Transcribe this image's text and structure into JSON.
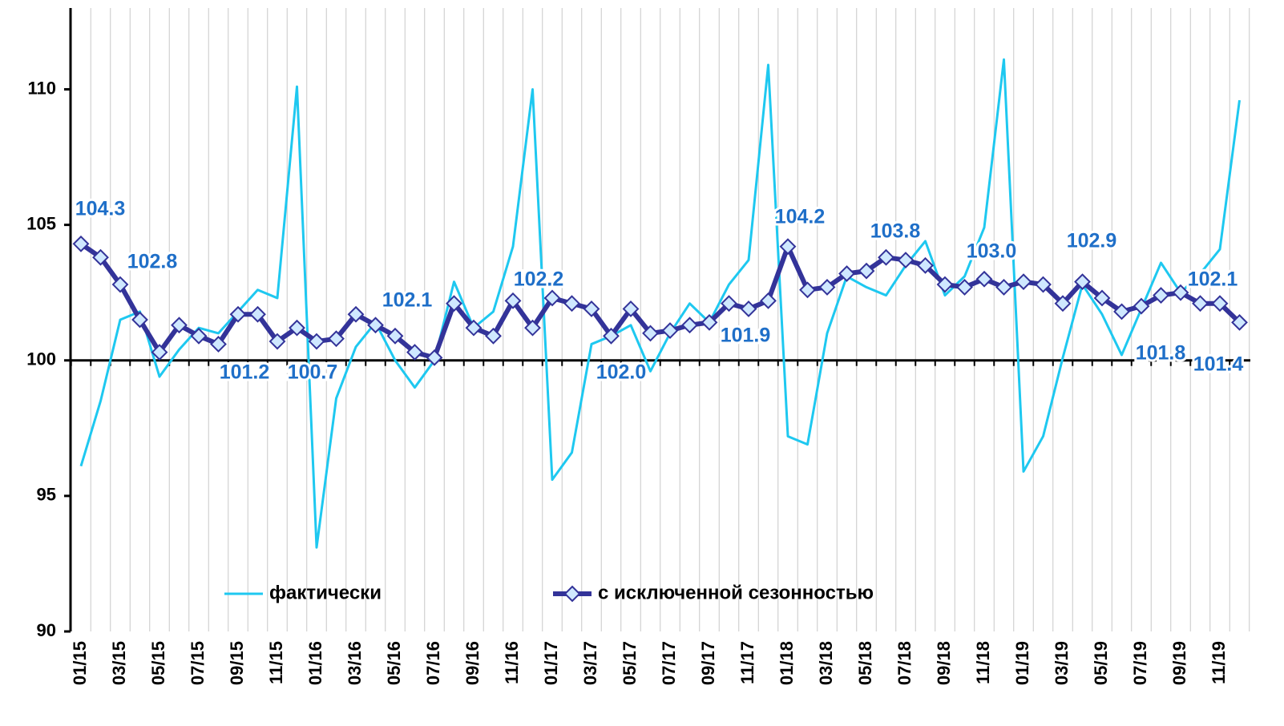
{
  "chart_data": {
    "type": "line",
    "categories": [
      "01/15",
      null,
      "03/15",
      null,
      "05/15",
      null,
      "07/15",
      null,
      "09/15",
      null,
      "11/15",
      null,
      "01/16",
      null,
      "03/16",
      null,
      "05/16",
      null,
      "07/16",
      null,
      "09/16",
      null,
      "11/16",
      null,
      "01/17",
      null,
      "03/17",
      null,
      "05/17",
      null,
      "07/17",
      null,
      "09/17",
      null,
      "11/17",
      null,
      "01/18",
      null,
      "03/18",
      null,
      "05/18",
      null,
      "07/18",
      null,
      "09/18",
      null,
      "11/18",
      null,
      "01/19",
      null,
      "03/19",
      null,
      "05/19",
      null,
      "07/19",
      null,
      "09/19",
      null,
      "11/19",
      null
    ],
    "series": [
      {
        "name": "фактически",
        "color": "#1ec8f0",
        "values": [
          96.1,
          98.5,
          101.5,
          101.8,
          99.4,
          100.4,
          101.2,
          101.0,
          101.8,
          102.6,
          102.3,
          110.1,
          93.1,
          98.6,
          100.5,
          101.4,
          100.0,
          99.0,
          100.0,
          102.9,
          101.2,
          101.8,
          104.2,
          110.0,
          95.6,
          96.6,
          100.6,
          100.9,
          101.3,
          99.6,
          101.0,
          102.1,
          101.4,
          102.8,
          103.7,
          110.9,
          97.2,
          96.9,
          101.0,
          103.1,
          102.7,
          102.4,
          103.5,
          104.4,
          102.4,
          103.1,
          104.9,
          111.1,
          95.9,
          97.2,
          100.1,
          102.8,
          101.7,
          100.2,
          101.9,
          103.6,
          102.5,
          103.2,
          104.1,
          109.6
        ]
      },
      {
        "name": "с исключенной сезонностью",
        "color": "#333399",
        "values": [
          104.3,
          103.8,
          102.8,
          101.5,
          100.3,
          101.3,
          100.9,
          100.6,
          101.7,
          101.7,
          100.7,
          101.2,
          100.7,
          100.8,
          101.7,
          101.3,
          100.9,
          100.3,
          100.1,
          102.1,
          101.2,
          100.9,
          102.2,
          101.2,
          102.3,
          102.1,
          101.9,
          100.9,
          101.9,
          101.0,
          101.1,
          101.3,
          101.4,
          102.1,
          101.9,
          102.2,
          104.2,
          102.6,
          102.7,
          103.2,
          103.3,
          103.8,
          103.7,
          103.5,
          102.8,
          102.7,
          103.0,
          102.7,
          102.9,
          102.8,
          102.1,
          102.9,
          102.3,
          101.8,
          102.0,
          102.4,
          102.5,
          102.1,
          102.1,
          101.4
        ]
      }
    ],
    "annotations": [
      "104.3",
      "102.8",
      "101.2",
      "100.7",
      "102.1",
      "102.2",
      "102.0",
      "101.9",
      "104.2",
      "103.8",
      "103.0",
      "102.9",
      "101.8",
      "102.1",
      "101.4"
    ],
    "ylim": [
      90,
      113
    ],
    "yticks": [
      90,
      95,
      100,
      105,
      110
    ],
    "grid": true
  }
}
